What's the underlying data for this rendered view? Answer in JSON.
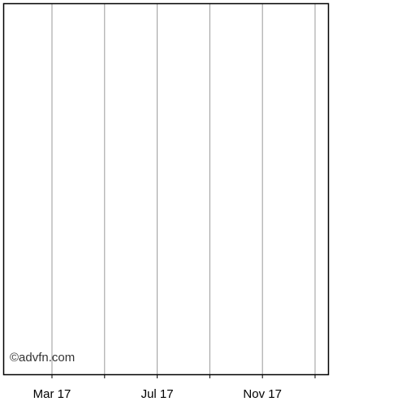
{
  "chart_data": {
    "type": "line",
    "title": "",
    "xlabel": "",
    "ylabel": "",
    "x_ticks": [
      "Mar 17",
      "Jul 17",
      "Nov 17"
    ],
    "x_gridlines": 6,
    "grid": true,
    "grid_axis": "x",
    "series": [],
    "watermark": "©advfn.com",
    "colors": {
      "frame": "#000000",
      "grid": "#9a9a9a",
      "text": "#000000",
      "background": "#ffffff"
    }
  }
}
